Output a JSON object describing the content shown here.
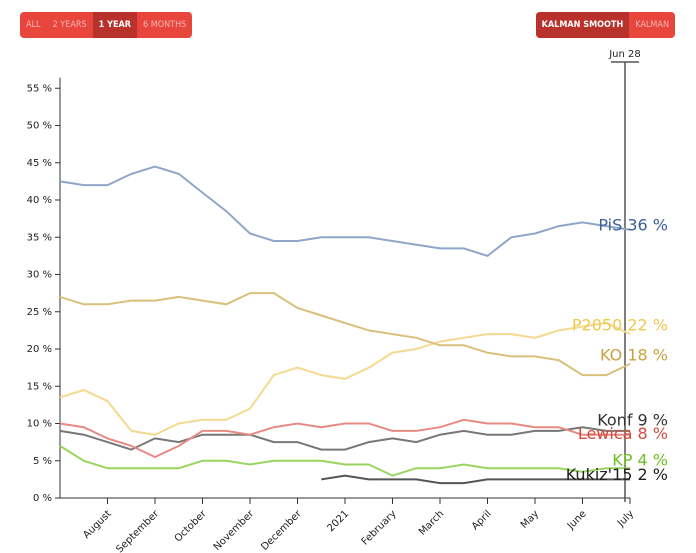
{
  "controls": {
    "range_buttons": [
      "ALL",
      "2 YEARS",
      "1 YEAR",
      "6 MONTHS"
    ],
    "range_active": 2,
    "smooth_buttons": [
      "KALMAN SMOOTH",
      "KALMAN"
    ],
    "smooth_active": 0
  },
  "chart_data": {
    "type": "line",
    "categories": [
      null,
      null,
      "August",
      null,
      "September",
      null,
      "October",
      null,
      "November",
      null,
      "December",
      null,
      "2021",
      null,
      "February",
      null,
      "March",
      null,
      "April",
      null,
      "May",
      null,
      "June",
      null,
      "July"
    ],
    "ylim": [
      0,
      56
    ],
    "yticks": [
      {
        "value": 0,
        "label": "0 %"
      },
      {
        "value": 5,
        "label": "5 %"
      },
      {
        "value": 10,
        "label": "10 %"
      },
      {
        "value": 15,
        "label": "15 %"
      },
      {
        "value": 20,
        "label": "20 %"
      },
      {
        "value": 25,
        "label": "25 %"
      },
      {
        "value": 30,
        "label": "30 %"
      },
      {
        "value": 35,
        "label": "35 %"
      },
      {
        "value": 40,
        "label": "40 %"
      },
      {
        "value": 45,
        "label": "45 %"
      },
      {
        "value": 50,
        "label": "50 %"
      },
      {
        "value": 55,
        "label": "55 %"
      }
    ],
    "marker_label": "Jun 28",
    "series": [
      {
        "name": "PiS 36 %",
        "color": "#8ea6c9",
        "label_color": "#3a5f9a",
        "values": [
          42.5,
          42,
          42,
          43.5,
          44.5,
          43.5,
          41,
          38.5,
          35.5,
          34.5,
          34.5,
          35,
          35,
          35,
          34.5,
          34,
          33.5,
          33.5,
          32.5,
          35,
          35.5,
          36.5,
          37,
          36.5,
          36
        ]
      },
      {
        "name": "P2050 22 %",
        "color": "#f5d990",
        "label_color": "#f0c84a",
        "values": [
          13.5,
          14.5,
          13,
          9,
          8.5,
          10,
          10.5,
          10.5,
          12,
          16.5,
          17.5,
          16.5,
          16,
          17.5,
          19.5,
          20,
          21,
          21.5,
          22,
          22,
          21.5,
          22.5,
          23,
          23.5,
          22
        ]
      },
      {
        "name": "KO 18 %",
        "color": "#d9c07a",
        "label_color": "#c9a240",
        "values": [
          27,
          26,
          26,
          26.5,
          26.5,
          27,
          26.5,
          26,
          27.5,
          27.5,
          25.5,
          24.5,
          23.5,
          22.5,
          22,
          21.5,
          20.5,
          20.5,
          19.5,
          19,
          19,
          18.5,
          16.5,
          16.5,
          18
        ]
      },
      {
        "name": "Konf 9 %",
        "color": "#777777",
        "label_color": "#333333",
        "values": [
          9,
          8.5,
          7.5,
          6.5,
          8,
          7.5,
          8.5,
          8.5,
          8.5,
          7.5,
          7.5,
          6.5,
          6.5,
          7.5,
          8,
          7.5,
          8.5,
          9,
          8.5,
          8.5,
          9,
          9,
          9.5,
          9,
          9
        ]
      },
      {
        "name": "Lewica 8 %",
        "color": "#e88a84",
        "label_color": "#d24a3f",
        "values": [
          10,
          9.5,
          8,
          7,
          5.5,
          7,
          9,
          9,
          8.5,
          9.5,
          10,
          9.5,
          10,
          10,
          9,
          9,
          9.5,
          10.5,
          10,
          10,
          9.5,
          9.5,
          8.5,
          8.5,
          8.5
        ]
      },
      {
        "name": "KP 4 %",
        "color": "#99d65f",
        "label_color": "#6cc023",
        "values": [
          7,
          5,
          4,
          4,
          4,
          4,
          5,
          5,
          4.5,
          5,
          5,
          5,
          4.5,
          4.5,
          3,
          4,
          4,
          4.5,
          4,
          4,
          4,
          4,
          3.5,
          4,
          4
        ]
      },
      {
        "name": "Kukiz'15 2 %",
        "color": "#555555",
        "label_color": "#222222",
        "values": [
          null,
          null,
          null,
          null,
          null,
          null,
          null,
          null,
          null,
          null,
          null,
          2.5,
          3,
          2.5,
          2.5,
          2.5,
          2,
          2,
          2.5,
          2.5,
          2.5,
          2.5,
          2.5,
          2.5,
          2.5
        ]
      }
    ]
  }
}
